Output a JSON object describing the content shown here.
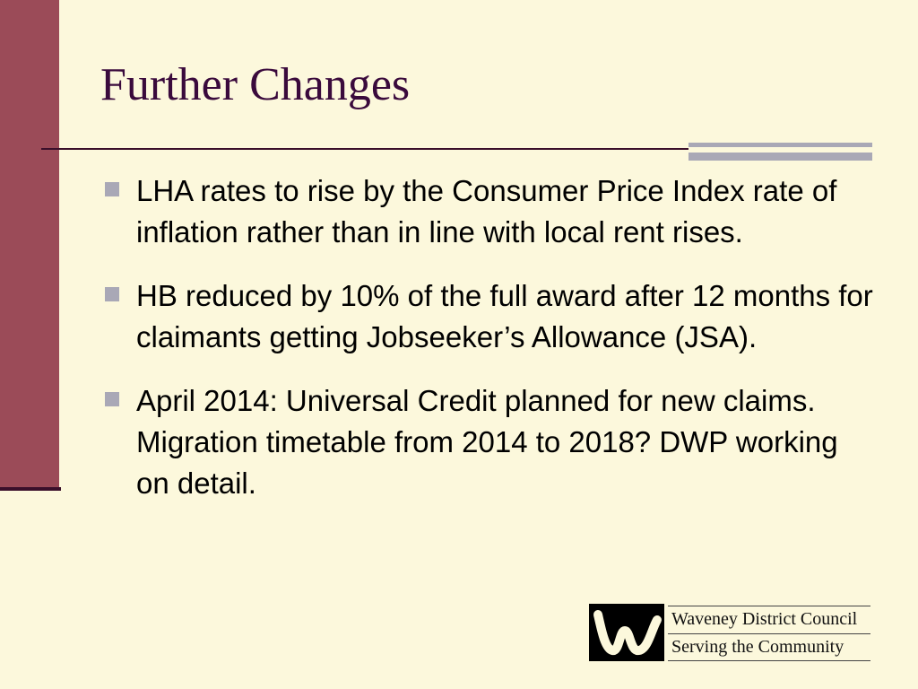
{
  "slide": {
    "title": "Further Changes",
    "bullets": [
      "LHA rates to rise by the Consumer Price Index rate of inflation rather than in line with local rent rises.",
      "HB reduced by 10% of the full award after 12 months for claimants getting Jobseeker’s Allowance (JSA).",
      "April 2014: Universal Credit planned for new claims. Migration timetable from 2014 to 2018? DWP working on detail."
    ]
  },
  "logo": {
    "line1": "Waveney District Council",
    "line2": "Serving the Community"
  },
  "colors": {
    "background": "#fcf8dc",
    "left_bar": "#9b4b58",
    "title": "#3a0a3c",
    "accent_gray": "#a9a8b6"
  }
}
